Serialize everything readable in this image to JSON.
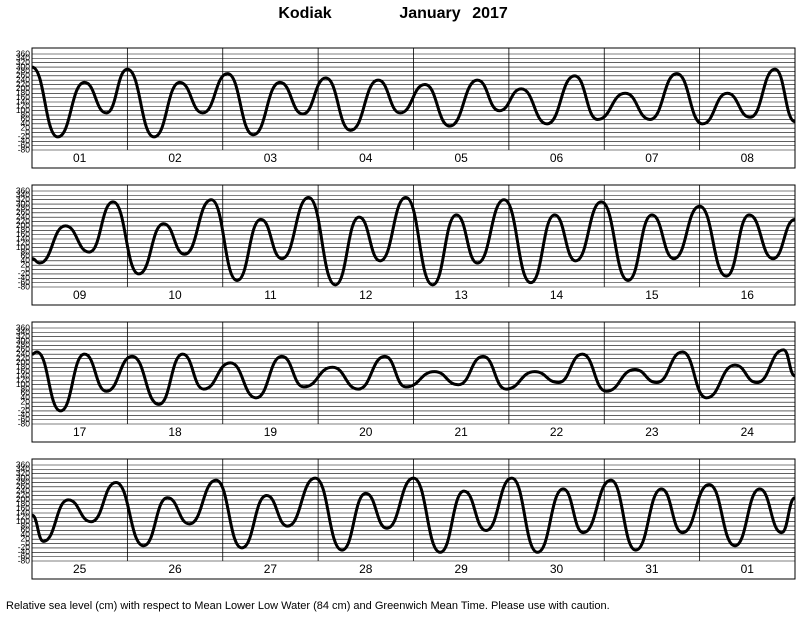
{
  "header": {
    "location": "Kodiak",
    "month": "January",
    "year": "2017"
  },
  "footer": "Relative sea level (cm) with respect to Mean Lower Low Water (84 cm) and Greenwich Mean Time. Please use with caution.",
  "chart_data": [
    {
      "type": "line",
      "categories": [
        "01",
        "02",
        "03",
        "04",
        "05",
        "06",
        "07",
        "08"
      ],
      "color": "#000000",
      "xlim": [
        0,
        8
      ],
      "ylim": [
        -80,
        360
      ],
      "grid": true,
      "yticks": [
        360,
        340,
        320,
        300,
        280,
        260,
        240,
        220,
        200,
        180,
        160,
        140,
        120,
        100,
        80,
        60,
        40,
        20,
        0,
        -20,
        -40,
        -60,
        -80
      ],
      "x": [
        0,
        0.27,
        0.55,
        0.78,
        1.0,
        1.28,
        1.55,
        1.79,
        2.05,
        2.32,
        2.6,
        2.84,
        3.08,
        3.34,
        3.63,
        3.86,
        4.12,
        4.38,
        4.67,
        4.9,
        5.13,
        5.4,
        5.69,
        5.93,
        6.22,
        6.48,
        6.76,
        7.03,
        7.29,
        7.53,
        7.79,
        8.0
      ],
      "values": [
        300,
        -20,
        230,
        90,
        290,
        -20,
        230,
        90,
        270,
        -10,
        230,
        85,
        250,
        10,
        240,
        90,
        220,
        30,
        240,
        100,
        200,
        40,
        260,
        60,
        180,
        60,
        270,
        40,
        180,
        70,
        290,
        50
      ]
    },
    {
      "type": "line",
      "categories": [
        "09",
        "10",
        "11",
        "12",
        "13",
        "14",
        "15",
        "16"
      ],
      "color": "#000000",
      "xlim": [
        0,
        8
      ],
      "ylim": [
        -80,
        360
      ],
      "grid": true,
      "yticks": [
        360,
        340,
        320,
        300,
        280,
        260,
        240,
        220,
        200,
        180,
        160,
        140,
        120,
        100,
        80,
        60,
        40,
        20,
        0,
        -20,
        -40,
        -60,
        -80
      ],
      "x": [
        0,
        0.08,
        0.35,
        0.6,
        0.85,
        1.12,
        1.38,
        1.6,
        1.88,
        2.15,
        2.4,
        2.62,
        2.9,
        3.18,
        3.43,
        3.65,
        3.92,
        4.2,
        4.45,
        4.67,
        4.95,
        5.23,
        5.48,
        5.7,
        5.97,
        6.25,
        6.5,
        6.73,
        7.0,
        7.28,
        7.52,
        7.77,
        8.0
      ],
      "values": [
        50,
        30,
        200,
        80,
        310,
        -20,
        210,
        70,
        320,
        -50,
        230,
        50,
        330,
        -70,
        240,
        40,
        330,
        -70,
        250,
        30,
        320,
        -60,
        250,
        40,
        310,
        -50,
        250,
        50,
        290,
        -30,
        250,
        50,
        230
      ]
    },
    {
      "type": "line",
      "categories": [
        "17",
        "18",
        "19",
        "20",
        "21",
        "22",
        "23",
        "24"
      ],
      "color": "#000000",
      "xlim": [
        0,
        8
      ],
      "ylim": [
        -80,
        360
      ],
      "grid": true,
      "yticks": [
        360,
        340,
        320,
        300,
        280,
        260,
        240,
        220,
        200,
        180,
        160,
        140,
        120,
        100,
        80,
        60,
        40,
        20,
        0,
        -20,
        -40,
        -60,
        -80
      ],
      "x": [
        0,
        0.05,
        0.3,
        0.55,
        0.78,
        1.05,
        1.33,
        1.58,
        1.8,
        2.08,
        2.35,
        2.62,
        2.85,
        3.15,
        3.42,
        3.7,
        3.92,
        4.22,
        4.47,
        4.73,
        4.97,
        5.27,
        5.52,
        5.77,
        6.02,
        6.32,
        6.55,
        6.82,
        7.07,
        7.37,
        7.6,
        7.88,
        8.0
      ],
      "values": [
        240,
        250,
        -20,
        240,
        70,
        230,
        10,
        240,
        80,
        200,
        40,
        230,
        90,
        180,
        80,
        230,
        90,
        160,
        100,
        230,
        80,
        160,
        110,
        240,
        70,
        170,
        110,
        250,
        40,
        190,
        110,
        260,
        140
      ]
    },
    {
      "type": "line",
      "categories": [
        "25",
        "26",
        "27",
        "28",
        "29",
        "30",
        "31",
        "01"
      ],
      "color": "#000000",
      "xlim": [
        0,
        8
      ],
      "ylim": [
        -80,
        360
      ],
      "grid": true,
      "yticks": [
        360,
        340,
        320,
        300,
        280,
        260,
        240,
        220,
        200,
        180,
        160,
        140,
        120,
        100,
        80,
        60,
        40,
        20,
        0,
        -20,
        -40,
        -60,
        -80
      ],
      "x": [
        0,
        0.12,
        0.38,
        0.62,
        0.88,
        1.17,
        1.42,
        1.65,
        1.93,
        2.2,
        2.46,
        2.68,
        2.97,
        3.25,
        3.5,
        3.72,
        4.0,
        4.28,
        4.53,
        4.76,
        5.03,
        5.3,
        5.57,
        5.78,
        6.07,
        6.33,
        6.6,
        6.82,
        7.1,
        7.37,
        7.63,
        7.86,
        8.0
      ],
      "values": [
        130,
        10,
        200,
        100,
        280,
        -10,
        210,
        90,
        290,
        -20,
        220,
        80,
        300,
        -30,
        230,
        70,
        300,
        -40,
        240,
        60,
        300,
        -40,
        250,
        50,
        290,
        -30,
        250,
        50,
        270,
        -10,
        250,
        50,
        210
      ]
    }
  ]
}
